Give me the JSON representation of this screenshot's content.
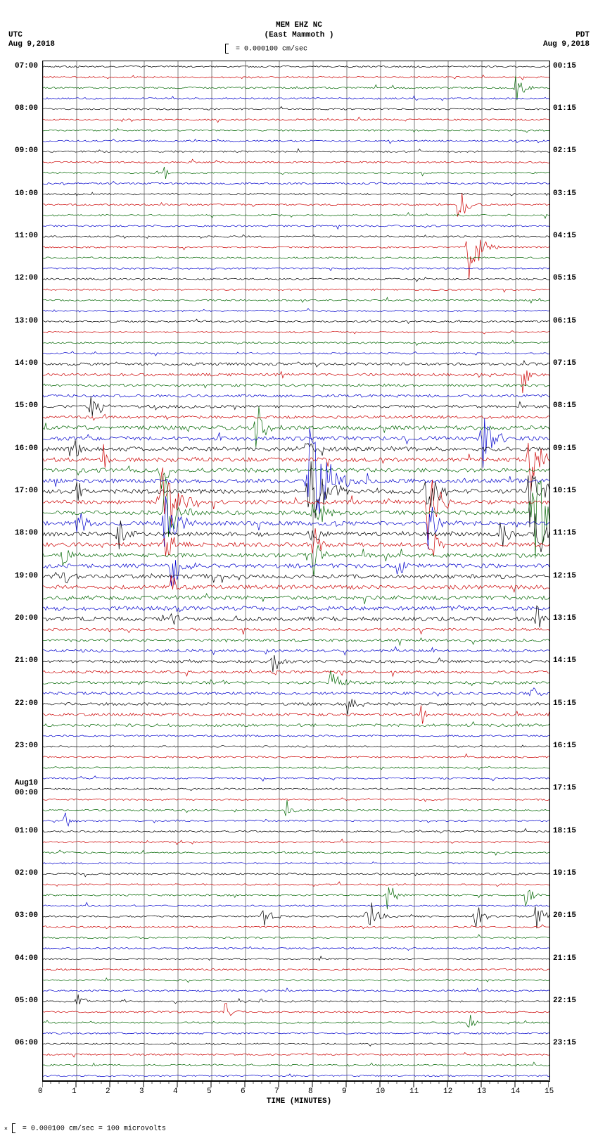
{
  "header": {
    "station": "MEM EHZ NC",
    "location": "(East Mammoth )",
    "scale_text": "= 0.000100 cm/sec"
  },
  "tz": {
    "left_tz": "UTC",
    "left_date": "Aug 9,2018",
    "right_tz": "PDT",
    "right_date": "Aug 9,2018"
  },
  "footer": {
    "text": "= 0.000100 cm/sec =   100 microvolts"
  },
  "xaxis": {
    "label": "TIME (MINUTES)",
    "min": 0,
    "max": 15,
    "major_tick_step": 1,
    "minor_ticks_per_major": 4
  },
  "plot": {
    "n_traces": 96,
    "minutes_per_trace": 15,
    "trace_colors": [
      "#000000",
      "#cc0000",
      "#006600",
      "#0000cc"
    ],
    "grid_color": "#000000",
    "background": "#ffffff",
    "left_labels": [
      {
        "row": 0,
        "text": "07:00"
      },
      {
        "row": 4,
        "text": "08:00"
      },
      {
        "row": 8,
        "text": "09:00"
      },
      {
        "row": 12,
        "text": "10:00"
      },
      {
        "row": 16,
        "text": "11:00"
      },
      {
        "row": 20,
        "text": "12:00"
      },
      {
        "row": 24,
        "text": "13:00"
      },
      {
        "row": 28,
        "text": "14:00"
      },
      {
        "row": 32,
        "text": "15:00"
      },
      {
        "row": 36,
        "text": "16:00"
      },
      {
        "row": 40,
        "text": "17:00"
      },
      {
        "row": 44,
        "text": "18:00"
      },
      {
        "row": 48,
        "text": "19:00"
      },
      {
        "row": 52,
        "text": "20:00"
      },
      {
        "row": 56,
        "text": "21:00"
      },
      {
        "row": 60,
        "text": "22:00"
      },
      {
        "row": 64,
        "text": "23:00"
      },
      {
        "row": 68,
        "text": "Aug10",
        "extra": "00:00"
      },
      {
        "row": 72,
        "text": "01:00"
      },
      {
        "row": 76,
        "text": "02:00"
      },
      {
        "row": 80,
        "text": "03:00"
      },
      {
        "row": 84,
        "text": "04:00"
      },
      {
        "row": 88,
        "text": "05:00"
      },
      {
        "row": 92,
        "text": "06:00"
      }
    ],
    "right_labels": [
      {
        "row": 0,
        "text": "00:15"
      },
      {
        "row": 4,
        "text": "01:15"
      },
      {
        "row": 8,
        "text": "02:15"
      },
      {
        "row": 12,
        "text": "03:15"
      },
      {
        "row": 16,
        "text": "04:15"
      },
      {
        "row": 20,
        "text": "05:15"
      },
      {
        "row": 24,
        "text": "06:15"
      },
      {
        "row": 28,
        "text": "07:15"
      },
      {
        "row": 32,
        "text": "08:15"
      },
      {
        "row": 36,
        "text": "09:15"
      },
      {
        "row": 40,
        "text": "10:15"
      },
      {
        "row": 44,
        "text": "11:15"
      },
      {
        "row": 48,
        "text": "12:15"
      },
      {
        "row": 52,
        "text": "13:15"
      },
      {
        "row": 56,
        "text": "14:15"
      },
      {
        "row": 60,
        "text": "15:15"
      },
      {
        "row": 64,
        "text": "16:15"
      },
      {
        "row": 68,
        "text": "17:15"
      },
      {
        "row": 72,
        "text": "18:15"
      },
      {
        "row": 76,
        "text": "19:15"
      },
      {
        "row": 80,
        "text": "20:15"
      },
      {
        "row": 84,
        "text": "21:15"
      },
      {
        "row": 88,
        "text": "22:15"
      },
      {
        "row": 92,
        "text": "23:15"
      }
    ],
    "events": [
      {
        "row": 2,
        "minute": 14.0,
        "amp": 40,
        "width": 0.15
      },
      {
        "row": 10,
        "minute": 3.6,
        "amp": 15,
        "width": 0.1
      },
      {
        "row": 13,
        "minute": 12.3,
        "amp": 35,
        "width": 0.2
      },
      {
        "row": 17,
        "minute": 12.6,
        "amp": 60,
        "width": 0.3
      },
      {
        "row": 29,
        "minute": 14.2,
        "amp": 30,
        "width": 0.15
      },
      {
        "row": 32,
        "minute": 1.4,
        "amp": 35,
        "width": 0.2
      },
      {
        "row": 34,
        "minute": 6.3,
        "amp": 45,
        "width": 0.2
      },
      {
        "row": 35,
        "minute": 13.0,
        "amp": 50,
        "width": 0.25
      },
      {
        "row": 36,
        "minute": 0.9,
        "amp": 25,
        "width": 0.15
      },
      {
        "row": 36,
        "minute": 7.8,
        "amp": 20,
        "width": 0.15
      },
      {
        "row": 37,
        "minute": 1.8,
        "amp": 25,
        "width": 0.15
      },
      {
        "row": 37,
        "minute": 14.4,
        "amp": 55,
        "width": 0.3
      },
      {
        "row": 38,
        "minute": 3.5,
        "amp": 35,
        "width": 0.2
      },
      {
        "row": 39,
        "minute": 7.9,
        "amp": 90,
        "width": 0.5
      },
      {
        "row": 40,
        "minute": 1.0,
        "amp": 25,
        "width": 0.15
      },
      {
        "row": 40,
        "minute": 7.9,
        "amp": 70,
        "width": 0.4
      },
      {
        "row": 40,
        "minute": 11.3,
        "amp": 50,
        "width": 0.3
      },
      {
        "row": 40,
        "minute": 14.4,
        "amp": 60,
        "width": 0.3
      },
      {
        "row": 41,
        "minute": 3.5,
        "amp": 70,
        "width": 0.4
      },
      {
        "row": 41,
        "minute": 11.4,
        "amp": 55,
        "width": 0.3
      },
      {
        "row": 42,
        "minute": 3.6,
        "amp": 55,
        "width": 0.3
      },
      {
        "row": 42,
        "minute": 8.0,
        "amp": 40,
        "width": 0.25
      },
      {
        "row": 42,
        "minute": 14.5,
        "amp": 90,
        "width": 0.4
      },
      {
        "row": 43,
        "minute": 1.0,
        "amp": 30,
        "width": 0.2
      },
      {
        "row": 43,
        "minute": 3.6,
        "amp": 45,
        "width": 0.3
      },
      {
        "row": 43,
        "minute": 11.4,
        "amp": 45,
        "width": 0.25
      },
      {
        "row": 44,
        "minute": 2.2,
        "amp": 35,
        "width": 0.2
      },
      {
        "row": 44,
        "minute": 7.9,
        "amp": 25,
        "width": 0.2
      },
      {
        "row": 44,
        "minute": 13.5,
        "amp": 35,
        "width": 0.2
      },
      {
        "row": 44,
        "minute": 14.6,
        "amp": 55,
        "width": 0.3
      },
      {
        "row": 45,
        "minute": 3.6,
        "amp": 35,
        "width": 0.2
      },
      {
        "row": 45,
        "minute": 8.0,
        "amp": 30,
        "width": 0.2
      },
      {
        "row": 45,
        "minute": 11.5,
        "amp": 30,
        "width": 0.2
      },
      {
        "row": 46,
        "minute": 0.6,
        "amp": 30,
        "width": 0.2
      },
      {
        "row": 46,
        "minute": 8.0,
        "amp": 35,
        "width": 0.2
      },
      {
        "row": 47,
        "minute": 3.8,
        "amp": 40,
        "width": 0.25
      },
      {
        "row": 47,
        "minute": 10.5,
        "amp": 25,
        "width": 0.15
      },
      {
        "row": 48,
        "minute": 0.6,
        "amp": 25,
        "width": 0.15
      },
      {
        "row": 49,
        "minute": 3.8,
        "amp": 20,
        "width": 0.15
      },
      {
        "row": 52,
        "minute": 3.8,
        "amp": 20,
        "width": 0.15
      },
      {
        "row": 52,
        "minute": 14.6,
        "amp": 30,
        "width": 0.2
      },
      {
        "row": 56,
        "minute": 6.8,
        "amp": 25,
        "width": 0.15
      },
      {
        "row": 58,
        "minute": 8.5,
        "amp": 30,
        "width": 0.2
      },
      {
        "row": 59,
        "minute": 14.4,
        "amp": 25,
        "width": 0.15
      },
      {
        "row": 60,
        "minute": 9.0,
        "amp": 25,
        "width": 0.15
      },
      {
        "row": 61,
        "minute": 11.2,
        "amp": 20,
        "width": 0.15
      },
      {
        "row": 70,
        "minute": 7.2,
        "amp": 20,
        "width": 0.15
      },
      {
        "row": 71,
        "minute": 0.6,
        "amp": 20,
        "width": 0.15
      },
      {
        "row": 78,
        "minute": 10.2,
        "amp": 25,
        "width": 0.2
      },
      {
        "row": 78,
        "minute": 14.3,
        "amp": 25,
        "width": 0.15
      },
      {
        "row": 80,
        "minute": 6.5,
        "amp": 25,
        "width": 0.2
      },
      {
        "row": 80,
        "minute": 9.6,
        "amp": 35,
        "width": 0.25
      },
      {
        "row": 80,
        "minute": 12.8,
        "amp": 25,
        "width": 0.2
      },
      {
        "row": 80,
        "minute": 14.6,
        "amp": 30,
        "width": 0.2
      },
      {
        "row": 88,
        "minute": 1.0,
        "amp": 20,
        "width": 0.15
      },
      {
        "row": 89,
        "minute": 5.4,
        "amp": 20,
        "width": 0.15
      },
      {
        "row": 90,
        "minute": 12.6,
        "amp": 20,
        "width": 0.15
      }
    ],
    "prng_seed": 20180809,
    "base_noise_amp": 1.2,
    "samples_per_trace": 360
  }
}
